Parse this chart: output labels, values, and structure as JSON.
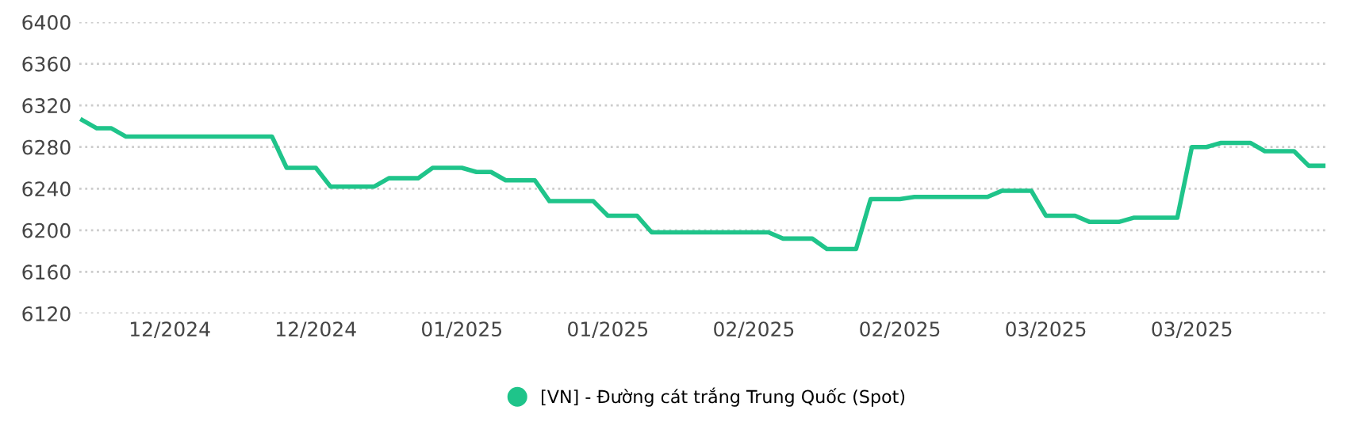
{
  "chart_data": {
    "type": "line",
    "categories": [
      null,
      null,
      null,
      null,
      null,
      null,
      "12/2024",
      null,
      null,
      null,
      null,
      null,
      null,
      null,
      null,
      null,
      "12/2024",
      null,
      null,
      null,
      null,
      null,
      null,
      null,
      null,
      null,
      "01/2025",
      null,
      null,
      null,
      null,
      null,
      null,
      null,
      null,
      null,
      "01/2025",
      null,
      null,
      null,
      null,
      null,
      null,
      null,
      null,
      null,
      "02/2025",
      null,
      null,
      null,
      null,
      null,
      null,
      null,
      null,
      null,
      "02/2025",
      null,
      null,
      null,
      null,
      null,
      null,
      null,
      null,
      null,
      "03/2025",
      null,
      null,
      null,
      null,
      null,
      null,
      null,
      null,
      null,
      "03/2025",
      null,
      null,
      null,
      null,
      null,
      null,
      null,
      null,
      null
    ],
    "series": [
      {
        "name": "[VN] - Đường cát trắng Trung Quốc (Spot)",
        "color": "#1fc48a",
        "values": [
          6306,
          6298,
          6298,
          6290,
          6290,
          6290,
          6290,
          6290,
          6290,
          6290,
          6290,
          6290,
          6290,
          6290,
          6260,
          6260,
          6260,
          6242,
          6242,
          6242,
          6242,
          6250,
          6250,
          6250,
          6260,
          6260,
          6260,
          6256,
          6256,
          6248,
          6248,
          6248,
          6228,
          6228,
          6228,
          6228,
          6214,
          6214,
          6214,
          6198,
          6198,
          6198,
          6198,
          6198,
          6198,
          6198,
          6198,
          6198,
          6192,
          6192,
          6192,
          6182,
          6182,
          6182,
          6230,
          6230,
          6230,
          6232,
          6232,
          6232,
          6232,
          6232,
          6232,
          6238,
          6238,
          6238,
          6214,
          6214,
          6214,
          6208,
          6208,
          6208,
          6212,
          6212,
          6212,
          6212,
          6280,
          6280,
          6284,
          6284,
          6284,
          6276,
          6276,
          6276,
          6262,
          6262
        ]
      }
    ],
    "ylim": [
      6120,
      6400
    ],
    "yticks": [
      6120,
      6160,
      6200,
      6240,
      6280,
      6320,
      6360,
      6400
    ],
    "grid": "y",
    "legend": "bottom",
    "marker": "none",
    "line_style": "solid"
  }
}
